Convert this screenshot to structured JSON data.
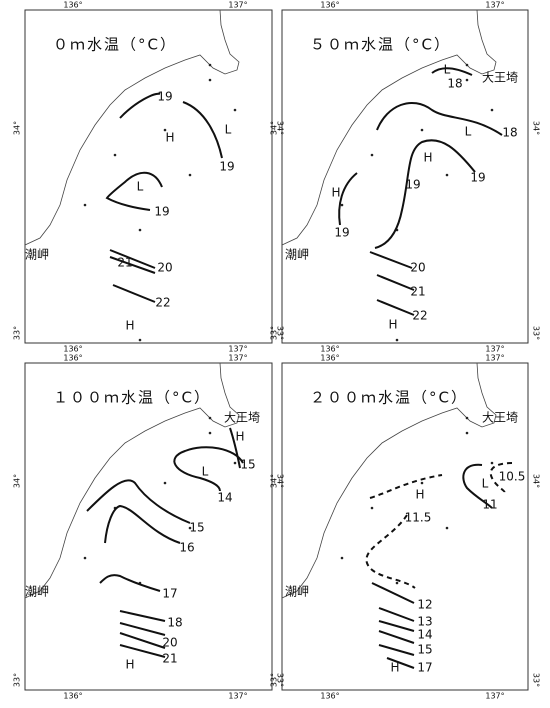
{
  "axis": {
    "lon": [
      "136°",
      "137°"
    ],
    "lat": [
      "34°",
      "33°"
    ]
  },
  "panels": [
    {
      "title": "０ｍ水温（°C）",
      "labels": [
        "19",
        "H",
        "L",
        "19",
        "L",
        "19",
        "21",
        "20",
        "22",
        "H",
        "潮岬"
      ]
    },
    {
      "title": "５０ｍ水温（°C）",
      "labels": [
        "L",
        "18",
        "大王埼",
        "18",
        "L",
        "H",
        "19",
        "19",
        "H",
        "19",
        "潮岬",
        "20",
        "21",
        "22",
        "H"
      ]
    },
    {
      "title": "１００ｍ水温（°C）",
      "labels": [
        "大王埼",
        "H",
        "15",
        "L",
        "14",
        "15",
        "16",
        "17",
        "18",
        "20",
        "21",
        "H",
        "潮岬"
      ]
    },
    {
      "title": "２００ｍ水温（°C）",
      "labels": [
        "大王埼",
        "10.5",
        "L",
        "11",
        "H",
        "11.5",
        "12",
        "13",
        "14",
        "15",
        "H",
        "17",
        "潮岬"
      ]
    }
  ]
}
